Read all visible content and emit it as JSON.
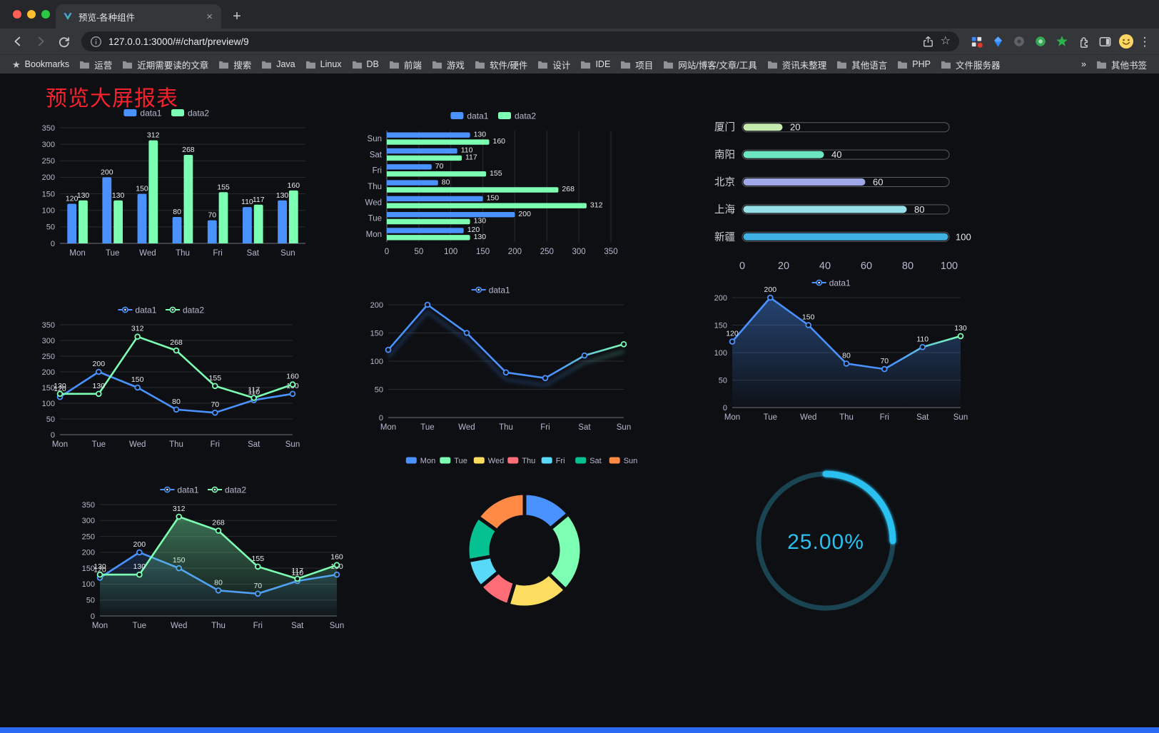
{
  "browser": {
    "tab": {
      "title": "预览-各种组件"
    },
    "address": {
      "url": "127.0.0.1:3000/#/chart/preview/9"
    },
    "bookmarks_label": "Bookmarks",
    "bookmarks": [
      "运营",
      "近期需要读的文章",
      "搜索",
      "Java",
      "Linux",
      "DB",
      "前端",
      "游戏",
      "软件/硬件",
      "设计",
      "IDE",
      "项目",
      "网站/博客/文章/工具",
      "资讯未整理",
      "其他语言",
      "PHP",
      "文件服务器"
    ],
    "other_bookmarks": "其他书签"
  },
  "icons": {
    "close": "×",
    "plus": "+",
    "star": "☆",
    "kebab": "⋮",
    "bookmarks_star": "★",
    "overflow": "»"
  },
  "page": {
    "title": "预览大屏报表"
  },
  "colors": {
    "blue": "#4992ff",
    "green": "#7cffb2",
    "title_red": "#f5222d",
    "footer_blue": "#2b6bf3"
  },
  "chart_data": [
    {
      "id": "bar-grouped",
      "type": "bar",
      "legend": true,
      "show_labels": true,
      "categories": [
        "Mon",
        "Tue",
        "Wed",
        "Thu",
        "Fri",
        "Sat",
        "Sun"
      ],
      "series": [
        {
          "name": "data1",
          "color": "#4992ff",
          "values": [
            120,
            200,
            150,
            80,
            70,
            110,
            130
          ]
        },
        {
          "name": "data2",
          "color": "#7cffb2",
          "values": [
            130,
            130,
            312,
            268,
            155,
            117,
            160
          ]
        }
      ],
      "ylim": [
        0,
        350
      ],
      "ytick_step": 50
    },
    {
      "id": "hbar-grouped",
      "type": "hbar",
      "legend": true,
      "show_labels": true,
      "categories": [
        "Mon",
        "Tue",
        "Wed",
        "Thu",
        "Fri",
        "Sat",
        "Sun"
      ],
      "series": [
        {
          "name": "data1",
          "color": "#4992ff",
          "values": [
            120,
            200,
            150,
            80,
            70,
            110,
            130
          ]
        },
        {
          "name": "data2",
          "color": "#7cffb2",
          "values": [
            130,
            130,
            312,
            268,
            155,
            117,
            160
          ]
        }
      ],
      "xlim": [
        0,
        350
      ],
      "xtick_step": 50
    },
    {
      "id": "city-progress",
      "type": "progress",
      "categories": [
        "厦门",
        "南阳",
        "北京",
        "上海",
        "新疆"
      ],
      "values": [
        20,
        40,
        60,
        80,
        100
      ],
      "colors": [
        "#c4ebad",
        "#6be6c1",
        "#a0a7e6",
        "#96dee8",
        "#3fb1e3"
      ],
      "xlim": [
        0,
        100
      ],
      "xticks": [
        0,
        20,
        40,
        60,
        80,
        100
      ]
    },
    {
      "id": "line-two-series",
      "type": "line",
      "legend": true,
      "show_labels": true,
      "categories": [
        "Mon",
        "Tue",
        "Wed",
        "Thu",
        "Fri",
        "Sat",
        "Sun"
      ],
      "series": [
        {
          "name": "data1",
          "color": "#4992ff",
          "values": [
            120,
            200,
            150,
            80,
            70,
            110,
            130
          ]
        },
        {
          "name": "data2",
          "color": "#7cffb2",
          "values": [
            130,
            130,
            312,
            268,
            155,
            117,
            160
          ]
        }
      ],
      "ylim": [
        0,
        350
      ],
      "ytick_step": 50
    },
    {
      "id": "line-gradient",
      "type": "line",
      "legend": true,
      "show_labels": false,
      "categories": [
        "Mon",
        "Tue",
        "Wed",
        "Thu",
        "Fri",
        "Sat",
        "Sun"
      ],
      "series": [
        {
          "name": "data1",
          "color": "#4992ff",
          "color_end": "#7cffb2",
          "shadow": true,
          "values": [
            120,
            200,
            150,
            80,
            70,
            110,
            130
          ]
        }
      ],
      "ylim": [
        0,
        200
      ],
      "ytick_step": 50
    },
    {
      "id": "area-gradient",
      "type": "line",
      "legend": true,
      "show_labels": true,
      "categories": [
        "Mon",
        "Tue",
        "Wed",
        "Thu",
        "Fri",
        "Sat",
        "Sun"
      ],
      "series": [
        {
          "name": "data1",
          "color": "#4992ff",
          "color_end": "#7cffb2",
          "area": true,
          "area_opacity": 0.4,
          "values": [
            120,
            200,
            150,
            80,
            70,
            110,
            130
          ]
        }
      ],
      "ylim": [
        0,
        200
      ],
      "ytick_step": 50
    },
    {
      "id": "line-area-two-series",
      "type": "line",
      "legend": true,
      "show_labels": true,
      "categories": [
        "Mon",
        "Tue",
        "Wed",
        "Thu",
        "Fri",
        "Sat",
        "Sun"
      ],
      "series": [
        {
          "name": "data1",
          "color": "#4992ff",
          "area": true,
          "area_opacity": 0.18,
          "values": [
            120,
            200,
            150,
            80,
            70,
            110,
            130
          ]
        },
        {
          "name": "data2",
          "color": "#7cffb2",
          "area": true,
          "area_opacity": 0.4,
          "values": [
            130,
            130,
            312,
            268,
            155,
            117,
            160
          ]
        }
      ],
      "ylim": [
        0,
        350
      ],
      "ytick_step": 50
    },
    {
      "id": "week-donut",
      "type": "donut",
      "legend": true,
      "categories": [
        "Mon",
        "Tue",
        "Wed",
        "Thu",
        "Fri",
        "Sat",
        "Sun"
      ],
      "values": [
        120,
        200,
        150,
        80,
        70,
        110,
        130
      ],
      "colors": [
        "#4992ff",
        "#7cffb2",
        "#fddd60",
        "#ff6e76",
        "#58d9f9",
        "#05c091",
        "#ff8a45"
      ]
    },
    {
      "id": "percent-gauge",
      "type": "gauge",
      "value": 25,
      "label": "25.00%",
      "color": "#29c0f0",
      "track_color": "#1b4452"
    }
  ]
}
